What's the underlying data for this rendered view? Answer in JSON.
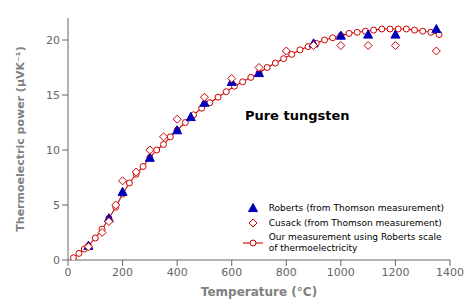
{
  "chart_data": {
    "type": "scatter",
    "title": "Pure tungsten",
    "xlabel": "Temperature (°C)",
    "ylabel": "Thermoelectric power (μVK⁻¹)",
    "xlim": [
      0,
      1400
    ],
    "ylim": [
      0,
      22
    ],
    "xticks": [
      0,
      200,
      400,
      600,
      800,
      1000,
      1200,
      1400
    ],
    "yticks": [
      0,
      5,
      10,
      15,
      20
    ],
    "grid": false,
    "legend": "lower right",
    "series": [
      {
        "name": "Roberts (from Thomson measurement)",
        "type": "scatter",
        "color": "#0000bb",
        "marker": "triangle",
        "x": [
          75,
          150,
          200,
          300,
          400,
          450,
          500,
          600,
          700,
          900,
          1000,
          1100,
          1200,
          1350
        ],
        "values": [
          1.3,
          3.8,
          6.2,
          9.3,
          11.8,
          13.0,
          14.3,
          16.2,
          17.0,
          19.7,
          20.4,
          20.5,
          20.5,
          21.0
        ]
      },
      {
        "name": "Cusack (from Thomson measurement)",
        "type": "scatter",
        "color": "#cc0000",
        "marker": "diamond_open",
        "x": [
          75,
          125,
          150,
          175,
          200,
          250,
          300,
          350,
          400,
          500,
          600,
          700,
          800,
          900,
          1000,
          1100,
          1200,
          1350
        ],
        "values": [
          1.2,
          2.5,
          3.5,
          5.0,
          7.2,
          8.0,
          10.0,
          11.2,
          12.8,
          14.8,
          16.5,
          17.5,
          19.0,
          19.5,
          19.5,
          19.5,
          19.5,
          19.0
        ]
      },
      {
        "name": "Our measurement using Roberts scale\nof thermoelectricity",
        "type": "line",
        "color": "#cc0000",
        "marker": "circle_open",
        "line_style": "solid",
        "x": [
          20,
          40,
          60,
          75,
          100,
          125,
          150,
          175,
          200,
          225,
          250,
          275,
          300,
          325,
          350,
          375,
          400,
          430,
          460,
          490,
          520,
          550,
          580,
          610,
          640,
          670,
          700,
          730,
          760,
          790,
          820,
          850,
          880,
          910,
          940,
          970,
          1000,
          1030,
          1060,
          1090,
          1120,
          1150,
          1180,
          1210,
          1240,
          1270,
          1300,
          1330,
          1360
        ],
        "values": [
          0.2,
          0.6,
          1.0,
          1.3,
          2.0,
          2.8,
          3.8,
          4.8,
          6.0,
          7.0,
          7.8,
          8.5,
          9.3,
          10.0,
          10.5,
          11.2,
          11.8,
          12.5,
          13.2,
          13.8,
          14.3,
          14.8,
          15.3,
          15.8,
          16.2,
          16.6,
          17.0,
          17.5,
          17.9,
          18.3,
          18.7,
          19.1,
          19.4,
          19.7,
          20.0,
          20.2,
          20.4,
          20.6,
          20.7,
          20.8,
          20.9,
          21.0,
          21.0,
          21.0,
          21.0,
          20.9,
          20.8,
          20.7,
          20.5
        ]
      }
    ]
  }
}
